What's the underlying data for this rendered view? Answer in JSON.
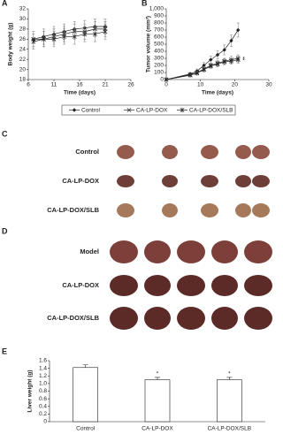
{
  "chart_data": [
    {
      "type": "line",
      "panel": "A",
      "x_label": "Time (days)",
      "y_label": "Body weight (g)",
      "x": [
        7,
        9,
        11,
        13,
        15,
        17,
        19,
        21
      ],
      "xlim": [
        6,
        26
      ],
      "xticks": [
        6,
        11,
        16,
        21,
        26
      ],
      "ylim": [
        18,
        32
      ],
      "yticks": [
        18,
        20,
        22,
        24,
        26,
        28,
        30,
        32
      ],
      "series": [
        {
          "name": "Control",
          "color": "#222",
          "marker": "diamond",
          "values": [
            26,
            26.5,
            27,
            27.5,
            28,
            28.2,
            28.5,
            28.5
          ],
          "errors": [
            1.5,
            1.5,
            1.5,
            1.5,
            1.5,
            1.5,
            1.5,
            1.5
          ]
        },
        {
          "name": "CA-LP-DOX",
          "color": "#222",
          "marker": "x",
          "values": [
            26,
            26,
            26.5,
            27,
            27.5,
            27.5,
            28,
            28
          ],
          "errors": [
            1.5,
            1.5,
            1.5,
            1.5,
            1.5,
            1.5,
            1.5,
            1.5
          ]
        },
        {
          "name": "CA-LP-DOX/SLB",
          "color": "#222",
          "marker": "asterisk",
          "values": [
            25.5,
            26,
            26,
            26.5,
            26.5,
            27,
            27,
            27.5
          ],
          "errors": [
            1.5,
            1.5,
            1.5,
            1.5,
            1.5,
            1.5,
            1.5,
            1.5
          ]
        }
      ]
    },
    {
      "type": "line",
      "panel": "B",
      "x_label": "Time (days)",
      "y_label": "Tumor volume (mm³)",
      "x": [
        0,
        7,
        9,
        11,
        13,
        15,
        17,
        19,
        21
      ],
      "xlim": [
        0,
        30
      ],
      "xticks": [
        0,
        10,
        20,
        30
      ],
      "ylim": [
        0,
        1000
      ],
      "yticks": [
        0,
        100,
        200,
        300,
        400,
        500,
        600,
        700,
        800,
        900,
        {
          "value": 1000,
          "label": "1,000"
        }
      ],
      "annotations": [
        "*",
        "*"
      ],
      "series": [
        {
          "name": "Control",
          "color": "#222",
          "marker": "diamond",
          "values": [
            0,
            80,
            120,
            200,
            280,
            350,
            420,
            550,
            700
          ],
          "errors": [
            0,
            20,
            30,
            40,
            50,
            60,
            70,
            80,
            100
          ]
        },
        {
          "name": "CA-LP-DOX",
          "color": "#222",
          "marker": "x",
          "values": [
            0,
            70,
            100,
            150,
            200,
            230,
            260,
            280,
            300
          ],
          "errors": [
            0,
            15,
            20,
            30,
            30,
            40,
            40,
            50,
            50
          ]
        },
        {
          "name": "CA-LP-DOX/SLB",
          "color": "#222",
          "marker": "asterisk",
          "values": [
            0,
            60,
            90,
            140,
            190,
            220,
            250,
            260,
            280
          ],
          "errors": [
            0,
            15,
            20,
            30,
            30,
            40,
            40,
            40,
            50
          ]
        }
      ]
    },
    {
      "type": "bar",
      "panel": "E",
      "y_label": "Liver weight (g)",
      "color": "#fff",
      "categories": [
        "Control",
        "CA-LP-DOX",
        "CA-LP-DOX/SLB"
      ],
      "values": [
        1.42,
        1.1,
        1.1
      ],
      "errors": [
        0.07,
        0.06,
        0.06
      ],
      "ylim": [
        0,
        1.6
      ],
      "yticks": [
        0,
        0.2,
        0.4,
        0.6,
        0.8,
        {
          "value": 1,
          "label": "1.0"
        },
        1.2,
        1.4,
        1.6
      ],
      "annotations": [
        "*",
        "*"
      ]
    }
  ],
  "photo_panels": [
    {
      "panel": "C",
      "rows": [
        "Control",
        "CA-LP-DOX",
        "CA-LP-DOX/SLB"
      ]
    },
    {
      "panel": "D",
      "rows": [
        "Model",
        "CA-LP-DOX",
        "CA-LP-DOX/SLB"
      ]
    }
  ]
}
